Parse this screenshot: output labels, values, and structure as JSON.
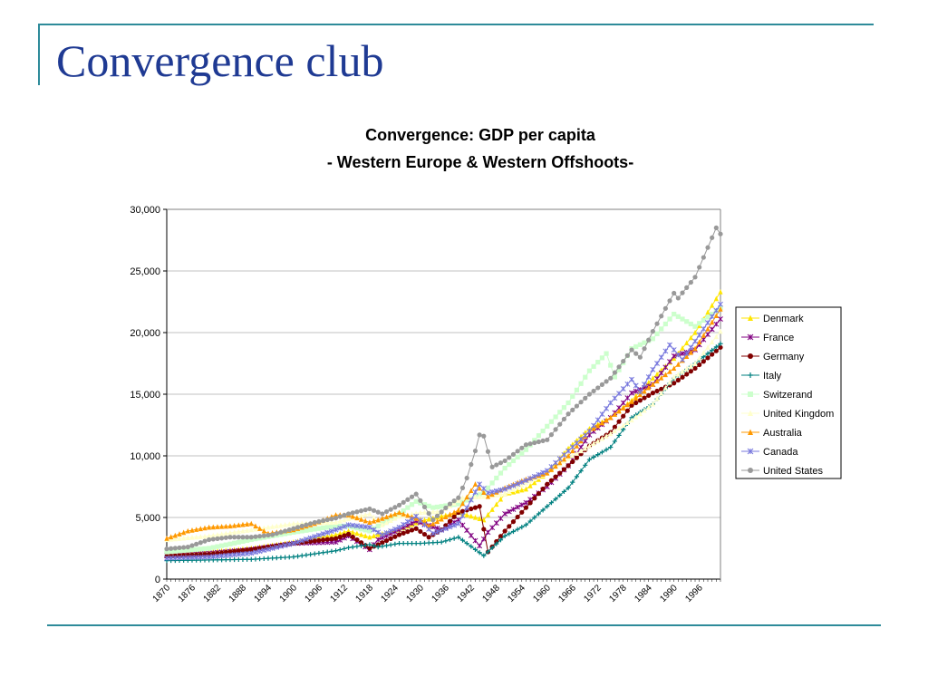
{
  "slide": {
    "title": "Convergence club",
    "accent_color": "#2e8b9a",
    "title_color": "#1f3a93"
  },
  "chart_data": {
    "type": "line",
    "title": "Convergence: GDP per capita",
    "subtitle": "- Western Europe & Western Offshoots-",
    "xlabel": "",
    "ylabel": "",
    "ylim": [
      0,
      30000
    ],
    "xlim": [
      1870,
      2001
    ],
    "y_ticks": [
      0,
      5000,
      10000,
      15000,
      20000,
      25000,
      30000
    ],
    "y_tick_labels": [
      "0",
      "5,000",
      "10,000",
      "15,000",
      "20,000",
      "25,000",
      "30,000"
    ],
    "x_tick_labels": [
      "1870",
      "1876",
      "1882",
      "1888",
      "1894",
      "1900",
      "1906",
      "1912",
      "1918",
      "1924",
      "1930",
      "1936",
      "1942",
      "1948",
      "1954",
      "1960",
      "1966",
      "1972",
      "1978",
      "1984",
      "1990",
      "1996"
    ],
    "grid": "horizontal",
    "legend": "right",
    "series": [
      {
        "name": "Denmark",
        "color": "#ffe600",
        "marker": "triangle",
        "points": [
          [
            1870,
            2000
          ],
          [
            1880,
            2200
          ],
          [
            1890,
            2500
          ],
          [
            1900,
            3000
          ],
          [
            1910,
            3600
          ],
          [
            1913,
            3900
          ],
          [
            1918,
            3400
          ],
          [
            1920,
            3600
          ],
          [
            1925,
            4000
          ],
          [
            1930,
            4700
          ],
          [
            1935,
            5100
          ],
          [
            1939,
            5400
          ],
          [
            1945,
            4800
          ],
          [
            1950,
            6900
          ],
          [
            1955,
            7300
          ],
          [
            1960,
            8600
          ],
          [
            1965,
            10600
          ],
          [
            1970,
            12200
          ],
          [
            1975,
            13100
          ],
          [
            1980,
            14500
          ],
          [
            1985,
            16300
          ],
          [
            1990,
            17900
          ],
          [
            1995,
            20000
          ],
          [
            2001,
            23300
          ]
        ]
      },
      {
        "name": "France",
        "color": "#800080",
        "marker": "star",
        "points": [
          [
            1870,
            1900
          ],
          [
            1880,
            2100
          ],
          [
            1890,
            2400
          ],
          [
            1900,
            2900
          ],
          [
            1910,
            3000
          ],
          [
            1913,
            3500
          ],
          [
            1918,
            2400
          ],
          [
            1920,
            3200
          ],
          [
            1925,
            4000
          ],
          [
            1929,
            4700
          ],
          [
            1935,
            4000
          ],
          [
            1939,
            4800
          ],
          [
            1944,
            2700
          ],
          [
            1946,
            3800
          ],
          [
            1950,
            5300
          ],
          [
            1955,
            6200
          ],
          [
            1960,
            7500
          ],
          [
            1965,
            9200
          ],
          [
            1970,
            11700
          ],
          [
            1975,
            13100
          ],
          [
            1980,
            15100
          ],
          [
            1985,
            15800
          ],
          [
            1990,
            18100
          ],
          [
            1995,
            18600
          ],
          [
            2001,
            21100
          ]
        ]
      },
      {
        "name": "Germany",
        "color": "#800000",
        "marker": "circle",
        "points": [
          [
            1870,
            1850
          ],
          [
            1880,
            2000
          ],
          [
            1890,
            2400
          ],
          [
            1900,
            2900
          ],
          [
            1910,
            3300
          ],
          [
            1913,
            3650
          ],
          [
            1918,
            2500
          ],
          [
            1920,
            2800
          ],
          [
            1925,
            3600
          ],
          [
            1929,
            4100
          ],
          [
            1932,
            3400
          ],
          [
            1935,
            4000
          ],
          [
            1939,
            5400
          ],
          [
            1944,
            5900
          ],
          [
            1946,
            2200
          ],
          [
            1950,
            3900
          ],
          [
            1955,
            5800
          ],
          [
            1960,
            7700
          ],
          [
            1965,
            9200
          ],
          [
            1970,
            10800
          ],
          [
            1975,
            11900
          ],
          [
            1980,
            14100
          ],
          [
            1985,
            15100
          ],
          [
            1990,
            15900
          ],
          [
            1995,
            17100
          ],
          [
            2001,
            18800
          ]
        ]
      },
      {
        "name": "Italy",
        "color": "#008080",
        "marker": "plus",
        "points": [
          [
            1870,
            1500
          ],
          [
            1880,
            1550
          ],
          [
            1890,
            1600
          ],
          [
            1900,
            1800
          ],
          [
            1910,
            2300
          ],
          [
            1913,
            2550
          ],
          [
            1918,
            2800
          ],
          [
            1920,
            2600
          ],
          [
            1925,
            2900
          ],
          [
            1930,
            2900
          ],
          [
            1935,
            3000
          ],
          [
            1939,
            3400
          ],
          [
            1945,
            1900
          ],
          [
            1950,
            3500
          ],
          [
            1955,
            4400
          ],
          [
            1960,
            5900
          ],
          [
            1965,
            7400
          ],
          [
            1970,
            9700
          ],
          [
            1975,
            10700
          ],
          [
            1980,
            13100
          ],
          [
            1985,
            14200
          ],
          [
            1990,
            16300
          ],
          [
            1995,
            17500
          ],
          [
            2001,
            19100
          ]
        ]
      },
      {
        "name": "Switzerand",
        "color": "#ccffcc",
        "marker": "square",
        "points": [
          [
            1870,
            2200
          ],
          [
            1880,
            2500
          ],
          [
            1890,
            3200
          ],
          [
            1900,
            3800
          ],
          [
            1910,
            4300
          ],
          [
            1913,
            4300
          ],
          [
            1918,
            3900
          ],
          [
            1920,
            4300
          ],
          [
            1925,
            5300
          ],
          [
            1929,
            6300
          ],
          [
            1933,
            5800
          ],
          [
            1939,
            6100
          ],
          [
            1945,
            7000
          ],
          [
            1950,
            9000
          ],
          [
            1955,
            10500
          ],
          [
            1960,
            12400
          ],
          [
            1965,
            14300
          ],
          [
            1970,
            16900
          ],
          [
            1974,
            18300
          ],
          [
            1976,
            16400
          ],
          [
            1980,
            18700
          ],
          [
            1985,
            19500
          ],
          [
            1990,
            21500
          ],
          [
            1995,
            20500
          ],
          [
            2001,
            22000
          ]
        ]
      },
      {
        "name": "United Kingdom",
        "color": "#ffffcc",
        "marker": "triangle",
        "points": [
          [
            1870,
            3200
          ],
          [
            1880,
            3500
          ],
          [
            1890,
            4000
          ],
          [
            1900,
            4500
          ],
          [
            1910,
            4600
          ],
          [
            1913,
            4900
          ],
          [
            1918,
            5300
          ],
          [
            1921,
            4400
          ],
          [
            1925,
            5100
          ],
          [
            1930,
            5400
          ],
          [
            1935,
            5500
          ],
          [
            1940,
            6600
          ],
          [
            1945,
            6700
          ],
          [
            1950,
            6900
          ],
          [
            1955,
            7800
          ],
          [
            1960,
            8600
          ],
          [
            1965,
            9800
          ],
          [
            1970,
            10800
          ],
          [
            1975,
            11800
          ],
          [
            1980,
            12900
          ],
          [
            1985,
            14200
          ],
          [
            1990,
            16400
          ],
          [
            1995,
            17500
          ],
          [
            2001,
            20100
          ]
        ]
      },
      {
        "name": "Australia",
        "color": "#ff9900",
        "marker": "triangle",
        "points": [
          [
            1870,
            3300
          ],
          [
            1875,
            3900
          ],
          [
            1880,
            4200
          ],
          [
            1885,
            4300
          ],
          [
            1890,
            4500
          ],
          [
            1894,
            3700
          ],
          [
            1900,
            4000
          ],
          [
            1905,
            4500
          ],
          [
            1910,
            5200
          ],
          [
            1913,
            5200
          ],
          [
            1918,
            4600
          ],
          [
            1920,
            4800
          ],
          [
            1925,
            5400
          ],
          [
            1930,
            4800
          ],
          [
            1932,
            4300
          ],
          [
            1939,
            5600
          ],
          [
            1943,
            7700
          ],
          [
            1946,
            6700
          ],
          [
            1950,
            7400
          ],
          [
            1955,
            8100
          ],
          [
            1960,
            8600
          ],
          [
            1965,
            10000
          ],
          [
            1970,
            12000
          ],
          [
            1975,
            13100
          ],
          [
            1980,
            14400
          ],
          [
            1985,
            15800
          ],
          [
            1990,
            17100
          ],
          [
            1995,
            18700
          ],
          [
            2001,
            21900
          ]
        ]
      },
      {
        "name": "Canada",
        "color": "#7777dd",
        "marker": "star",
        "points": [
          [
            1870,
            1700
          ],
          [
            1880,
            1800
          ],
          [
            1890,
            2100
          ],
          [
            1900,
            2900
          ],
          [
            1910,
            4000
          ],
          [
            1913,
            4400
          ],
          [
            1918,
            4200
          ],
          [
            1921,
            3600
          ],
          [
            1925,
            4200
          ],
          [
            1929,
            5100
          ],
          [
            1933,
            3700
          ],
          [
            1939,
            4500
          ],
          [
            1944,
            7700
          ],
          [
            1946,
            7000
          ],
          [
            1950,
            7300
          ],
          [
            1955,
            8000
          ],
          [
            1960,
            8800
          ],
          [
            1965,
            10400
          ],
          [
            1970,
            12000
          ],
          [
            1975,
            14300
          ],
          [
            1980,
            16200
          ],
          [
            1982,
            15200
          ],
          [
            1985,
            17000
          ],
          [
            1989,
            19000
          ],
          [
            1992,
            17800
          ],
          [
            1995,
            19300
          ],
          [
            2001,
            22300
          ]
        ]
      },
      {
        "name": "United States",
        "color": "#999999",
        "marker": "circle",
        "points": [
          [
            1870,
            2450
          ],
          [
            1875,
            2600
          ],
          [
            1880,
            3200
          ],
          [
            1885,
            3400
          ],
          [
            1890,
            3400
          ],
          [
            1895,
            3600
          ],
          [
            1900,
            4100
          ],
          [
            1905,
            4600
          ],
          [
            1910,
            4950
          ],
          [
            1913,
            5300
          ],
          [
            1918,
            5700
          ],
          [
            1921,
            5300
          ],
          [
            1925,
            6000
          ],
          [
            1929,
            6900
          ],
          [
            1933,
            4800
          ],
          [
            1937,
            6100
          ],
          [
            1939,
            6600
          ],
          [
            1941,
            8200
          ],
          [
            1943,
            10400
          ],
          [
            1944,
            11700
          ],
          [
            1945,
            11600
          ],
          [
            1947,
            9100
          ],
          [
            1950,
            9600
          ],
          [
            1955,
            10900
          ],
          [
            1960,
            11300
          ],
          [
            1965,
            13400
          ],
          [
            1970,
            15000
          ],
          [
            1975,
            16300
          ],
          [
            1980,
            18600
          ],
          [
            1982,
            18000
          ],
          [
            1985,
            20100
          ],
          [
            1990,
            23200
          ],
          [
            1991,
            22800
          ],
          [
            1995,
            24500
          ],
          [
            2000,
            28500
          ],
          [
            2001,
            28000
          ]
        ]
      }
    ]
  }
}
